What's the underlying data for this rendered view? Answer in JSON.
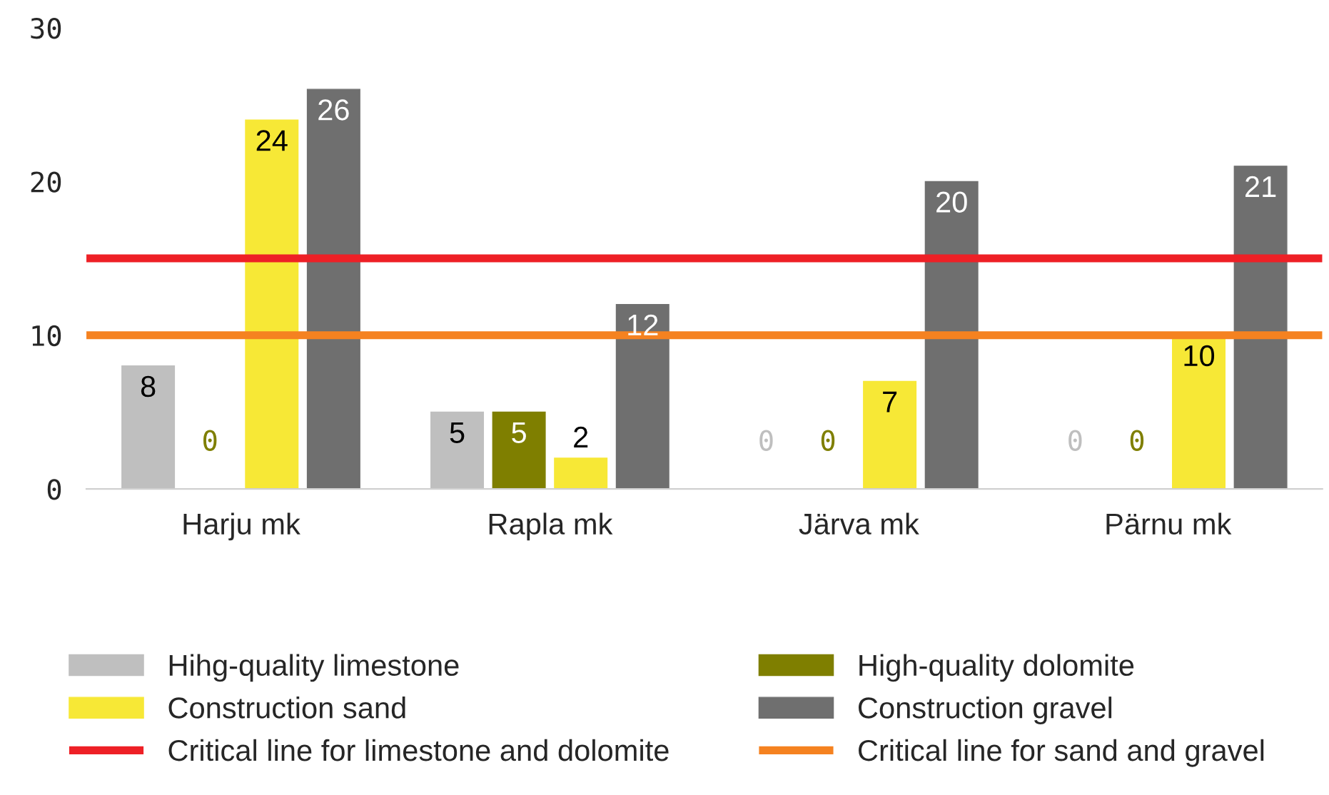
{
  "chart_data": {
    "type": "bar",
    "categories": [
      "Harju mk",
      "Rapla mk",
      "Järva mk",
      "Pärnu mk"
    ],
    "series": [
      {
        "name": "Hihg-quality limestone",
        "color": "#bfbfbf",
        "values": [
          8,
          5,
          0,
          0
        ]
      },
      {
        "name": "High-quality dolomite",
        "color": "#7f7f00",
        "values": [
          0,
          5,
          0,
          0
        ]
      },
      {
        "name": "Construction sand",
        "color": "#f7e836",
        "values": [
          24,
          2,
          7,
          10
        ]
      },
      {
        "name": "Construction gravel",
        "color": "#6f6f6f",
        "values": [
          26,
          12,
          20,
          21
        ]
      }
    ],
    "ylim": [
      0,
      30
    ],
    "yticks": [
      0,
      10,
      20,
      30
    ],
    "ref_lines": [
      {
        "axis": "y",
        "value": 15,
        "label": "Critical line for limestone and dolomite",
        "color": "#ee2026"
      },
      {
        "axis": "y",
        "value": 10,
        "label": "Critical line for sand and gravel",
        "color": "#f58220"
      }
    ],
    "data_labels": true,
    "grid": false,
    "legend": "bottom"
  }
}
